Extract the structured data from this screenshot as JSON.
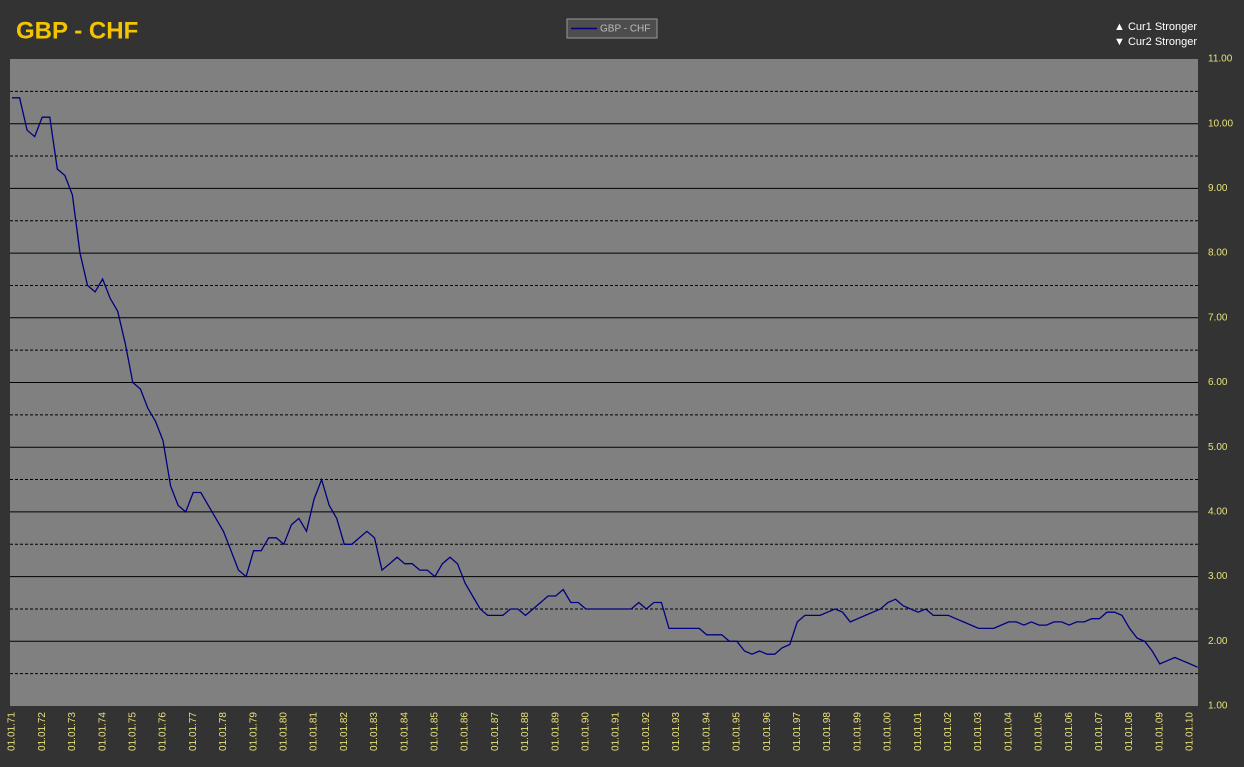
{
  "chart_data": {
    "type": "line",
    "title": "GBP - CHF",
    "annotations": [
      "▲ Cur1 Stronger",
      "▼ Cur2 Stronger"
    ],
    "xticks": [
      "01.01.71",
      "01.01.72",
      "01.01.73",
      "01.01.74",
      "01.01.75",
      "01.01.76",
      "01.01.77",
      "01.01.78",
      "01.01.79",
      "01.01.80",
      "01.01.81",
      "01.01.82",
      "01.01.83",
      "01.01.84",
      "01.01.85",
      "01.01.86",
      "01.01.87",
      "01.01.88",
      "01.01.89",
      "01.01.90",
      "01.01.91",
      "01.01.92",
      "01.01.93",
      "01.01.94",
      "01.01.95",
      "01.01.96",
      "01.01.97",
      "01.01.98",
      "01.01.99",
      "01.01.00",
      "01.01.01",
      "01.01.02",
      "01.01.03",
      "01.01.04",
      "01.01.05",
      "01.01.06",
      "01.01.07",
      "01.01.08",
      "01.01.09",
      "01.01.10"
    ],
    "x": [
      "01.01.71",
      "01.04.71",
      "01.07.71",
      "01.10.71",
      "01.01.72",
      "01.04.72",
      "01.07.72",
      "01.10.72",
      "01.01.73",
      "01.04.73",
      "01.07.73",
      "01.10.73",
      "01.01.74",
      "01.04.74",
      "01.07.74",
      "01.10.74",
      "01.01.75",
      "01.04.75",
      "01.07.75",
      "01.10.75",
      "01.01.76",
      "01.04.76",
      "01.07.76",
      "01.10.76",
      "01.01.77",
      "01.04.77",
      "01.07.77",
      "01.10.77",
      "01.01.78",
      "01.04.78",
      "01.07.78",
      "01.10.78",
      "01.01.79",
      "01.04.79",
      "01.07.79",
      "01.10.79",
      "01.01.80",
      "01.04.80",
      "01.07.80",
      "01.10.80",
      "01.01.81",
      "01.04.81",
      "01.07.81",
      "01.10.81",
      "01.01.82",
      "01.04.82",
      "01.07.82",
      "01.10.82",
      "01.01.83",
      "01.04.83",
      "01.07.83",
      "01.10.83",
      "01.01.84",
      "01.04.84",
      "01.07.84",
      "01.10.84",
      "01.01.85",
      "01.04.85",
      "01.07.85",
      "01.10.85",
      "01.01.86",
      "01.04.86",
      "01.07.86",
      "01.10.86",
      "01.01.87",
      "01.04.87",
      "01.07.87",
      "01.10.87",
      "01.01.88",
      "01.04.88",
      "01.07.88",
      "01.10.88",
      "01.01.89",
      "01.04.89",
      "01.07.89",
      "01.10.89",
      "01.01.90",
      "01.04.90",
      "01.07.90",
      "01.10.90",
      "01.01.91",
      "01.04.91",
      "01.07.91",
      "01.10.91",
      "01.01.92",
      "01.04.92",
      "01.07.92",
      "01.10.92",
      "01.01.93",
      "01.04.93",
      "01.07.93",
      "01.10.93",
      "01.01.94",
      "01.04.94",
      "01.07.94",
      "01.10.94",
      "01.01.95",
      "01.04.95",
      "01.07.95",
      "01.10.95",
      "01.01.96",
      "01.04.96",
      "01.07.96",
      "01.10.96",
      "01.01.97",
      "01.04.97",
      "01.07.97",
      "01.10.97",
      "01.01.98",
      "01.04.98",
      "01.07.98",
      "01.10.98",
      "01.01.99",
      "01.04.99",
      "01.07.99",
      "01.10.99",
      "01.01.00",
      "01.04.00",
      "01.07.00",
      "01.10.00",
      "01.01.01",
      "01.04.01",
      "01.07.01",
      "01.10.01",
      "01.01.02",
      "01.04.02",
      "01.07.02",
      "01.10.02",
      "01.01.03",
      "01.04.03",
      "01.07.03",
      "01.10.03",
      "01.01.04",
      "01.04.04",
      "01.07.04",
      "01.10.04",
      "01.01.05",
      "01.04.05",
      "01.07.05",
      "01.10.05",
      "01.01.06",
      "01.04.06",
      "01.07.06",
      "01.10.06",
      "01.01.07",
      "01.04.07",
      "01.07.07",
      "01.10.07",
      "01.01.08",
      "01.04.08",
      "01.07.08",
      "01.10.08",
      "01.01.09",
      "01.04.09",
      "01.07.09",
      "01.10.09",
      "01.01.10",
      "01.04.10"
    ],
    "series": [
      {
        "name": "GBP - CHF",
        "color": "#000080",
        "values": [
          10.4,
          10.4,
          9.9,
          9.8,
          10.1,
          10.1,
          9.3,
          9.2,
          8.9,
          8.0,
          7.5,
          7.4,
          7.6,
          7.3,
          7.1,
          6.6,
          6.0,
          5.9,
          5.6,
          5.4,
          5.1,
          4.4,
          4.1,
          4.0,
          4.3,
          4.3,
          4.1,
          3.9,
          3.7,
          3.4,
          3.1,
          3.0,
          3.4,
          3.4,
          3.6,
          3.6,
          3.5,
          3.8,
          3.9,
          3.7,
          4.2,
          4.5,
          4.1,
          3.9,
          3.5,
          3.5,
          3.6,
          3.7,
          3.6,
          3.1,
          3.2,
          3.3,
          3.2,
          3.2,
          3.1,
          3.1,
          3.0,
          3.2,
          3.3,
          3.2,
          2.9,
          2.7,
          2.5,
          2.4,
          2.4,
          2.4,
          2.5,
          2.5,
          2.4,
          2.5,
          2.6,
          2.7,
          2.7,
          2.8,
          2.6,
          2.6,
          2.5,
          2.5,
          2.5,
          2.5,
          2.5,
          2.5,
          2.5,
          2.6,
          2.5,
          2.6,
          2.6,
          2.2,
          2.2,
          2.2,
          2.2,
          2.2,
          2.1,
          2.1,
          2.1,
          2.0,
          2.0,
          1.85,
          1.8,
          1.85,
          1.8,
          1.8,
          1.9,
          1.95,
          2.3,
          2.4,
          2.4,
          2.4,
          2.45,
          2.5,
          2.45,
          2.3,
          2.35,
          2.4,
          2.45,
          2.5,
          2.6,
          2.65,
          2.55,
          2.5,
          2.45,
          2.5,
          2.4,
          2.4,
          2.4,
          2.35,
          2.3,
          2.25,
          2.2,
          2.2,
          2.2,
          2.25,
          2.3,
          2.3,
          2.25,
          2.3,
          2.25,
          2.25,
          2.3,
          2.3,
          2.25,
          2.3,
          2.3,
          2.35,
          2.35,
          2.45,
          2.45,
          2.4,
          2.2,
          2.05,
          2.0,
          1.85,
          1.65,
          1.7,
          1.75,
          1.7,
          1.65,
          1.6
        ]
      }
    ],
    "ylim": [
      1,
      11
    ],
    "yticks": [
      {
        "value": 1,
        "label": "1.00"
      },
      {
        "value": 2,
        "label": "2.00"
      },
      {
        "value": 3,
        "label": "3.00"
      },
      {
        "value": 4,
        "label": "4.00"
      },
      {
        "value": 5,
        "label": "5.00"
      },
      {
        "value": 6,
        "label": "6.00"
      },
      {
        "value": 7,
        "label": "7.00"
      },
      {
        "value": 8,
        "label": "8.00"
      },
      {
        "value": 9,
        "label": "9.00"
      },
      {
        "value": 10,
        "label": "10.00"
      },
      {
        "value": 11,
        "label": "11.00"
      }
    ],
    "grid": true
  }
}
